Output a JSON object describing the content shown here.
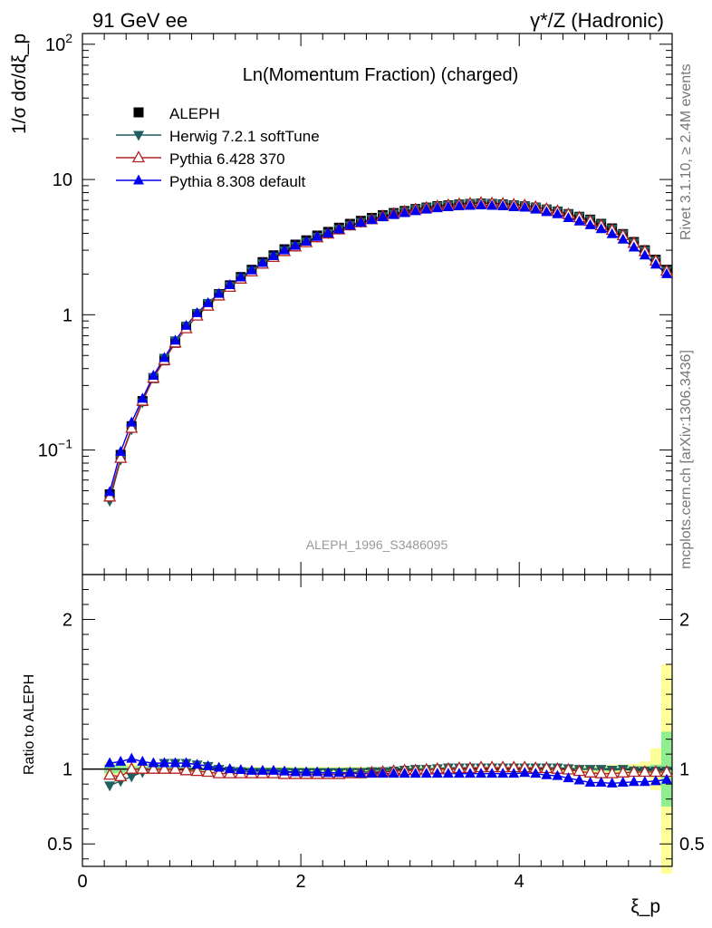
{
  "header": {
    "left": "91 GeV ee",
    "right": "γ*/Z (Hadronic)"
  },
  "side_labels": {
    "rivet": "Rivet 3.1.10, ≥ 2.4M events",
    "mcplots": "mcplots.cern.ch [arXiv:1306.3436]"
  },
  "chart_data": [
    {
      "type": "line",
      "title": "Ln(Momentum Fraction) (charged)",
      "watermark": "ALEPH_1996_S3486095",
      "ylabel": "1/σ dσ/dξ_p",
      "xlabel": "ξ_p",
      "yscale": "log",
      "xlim": [
        0,
        5.4
      ],
      "ylim": [
        0.012,
        120
      ],
      "yticks": [
        {
          "value": 0.1,
          "label": "10^-1"
        },
        {
          "value": 1,
          "label": "1"
        },
        {
          "value": 10,
          "label": "10"
        },
        {
          "value": 100,
          "label": "10^2"
        }
      ],
      "legend_position": "top-left",
      "x": [
        0.25,
        0.35,
        0.45,
        0.55,
        0.65,
        0.75,
        0.85,
        0.95,
        1.05,
        1.15,
        1.25,
        1.35,
        1.45,
        1.55,
        1.65,
        1.75,
        1.85,
        1.95,
        2.05,
        2.15,
        2.25,
        2.35,
        2.45,
        2.55,
        2.65,
        2.75,
        2.85,
        2.95,
        3.05,
        3.15,
        3.25,
        3.35,
        3.45,
        3.55,
        3.65,
        3.75,
        3.85,
        3.95,
        4.05,
        4.15,
        4.25,
        4.35,
        4.45,
        4.55,
        4.65,
        4.75,
        4.85,
        4.95,
        5.05,
        5.15,
        5.25,
        5.35
      ],
      "series": [
        {
          "name": "ALEPH",
          "color": "#000000",
          "marker": "square",
          "values": [
            0.047,
            0.092,
            0.15,
            0.23,
            0.34,
            0.46,
            0.62,
            0.8,
            1.0,
            1.2,
            1.42,
            1.65,
            1.9,
            2.15,
            2.45,
            2.75,
            3.05,
            3.3,
            3.55,
            3.85,
            4.1,
            4.4,
            4.7,
            4.95,
            5.2,
            5.45,
            5.65,
            5.85,
            6.05,
            6.2,
            6.35,
            6.45,
            6.55,
            6.6,
            6.65,
            6.6,
            6.55,
            6.45,
            6.35,
            6.2,
            6.0,
            5.8,
            5.55,
            5.3,
            5.05,
            4.7,
            4.35,
            3.95,
            3.45,
            3.0,
            2.55,
            2.15
          ]
        },
        {
          "name": "Herwig 7.2.1 softTune",
          "color": "#1f5f5f",
          "marker": "triangle-down",
          "values": [
            0.042,
            0.085,
            0.142,
            0.225,
            0.345,
            0.48,
            0.645,
            0.83,
            1.03,
            1.22,
            1.42,
            1.63,
            1.87,
            2.11,
            2.4,
            2.69,
            2.98,
            3.22,
            3.46,
            3.76,
            4.0,
            4.3,
            4.6,
            4.85,
            5.12,
            5.38,
            5.6,
            5.82,
            6.05,
            6.22,
            6.38,
            6.5,
            6.62,
            6.68,
            6.72,
            6.66,
            6.6,
            6.52,
            6.42,
            6.25,
            6.05,
            5.85,
            5.58,
            5.32,
            5.05,
            4.7,
            4.33,
            3.95,
            3.42,
            2.98,
            2.52,
            2.12
          ]
        },
        {
          "name": "Pythia 6.428 370",
          "color": "#b22222",
          "marker": "triangle-open",
          "values": [
            0.045,
            0.087,
            0.145,
            0.23,
            0.34,
            0.46,
            0.62,
            0.79,
            0.98,
            1.16,
            1.38,
            1.6,
            1.84,
            2.08,
            2.37,
            2.66,
            2.94,
            3.18,
            3.42,
            3.72,
            3.96,
            4.25,
            4.55,
            4.8,
            5.06,
            5.33,
            5.56,
            5.78,
            6.0,
            6.16,
            6.32,
            6.44,
            6.56,
            6.62,
            6.7,
            6.64,
            6.6,
            6.5,
            6.42,
            6.24,
            6.04,
            5.82,
            5.52,
            5.22,
            4.92,
            4.56,
            4.22,
            3.85,
            3.38,
            2.94,
            2.5,
            2.1
          ]
        },
        {
          "name": "Pythia 8.308 default",
          "color": "#0000ee",
          "marker": "triangle-up",
          "values": [
            0.049,
            0.097,
            0.16,
            0.24,
            0.355,
            0.48,
            0.645,
            0.83,
            1.03,
            1.22,
            1.43,
            1.66,
            1.89,
            2.13,
            2.42,
            2.72,
            3.0,
            3.24,
            3.48,
            3.77,
            4.0,
            4.28,
            4.57,
            4.8,
            5.03,
            5.27,
            5.47,
            5.66,
            5.85,
            6.0,
            6.15,
            6.25,
            6.35,
            6.4,
            6.45,
            6.4,
            6.35,
            6.25,
            6.2,
            6.0,
            5.75,
            5.55,
            5.2,
            4.9,
            4.6,
            4.3,
            3.95,
            3.6,
            3.15,
            2.75,
            2.35,
            2.0
          ]
        }
      ]
    },
    {
      "type": "line",
      "ylabel": "Ratio to ALEPH",
      "xlabel": "ξ_p",
      "xlim": [
        0,
        5.4
      ],
      "ylim": [
        0.35,
        2.3
      ],
      "yticks": [
        0.5,
        1,
        2
      ],
      "xticks": [
        0,
        2,
        4
      ],
      "series": [
        {
          "name": "Herwig 7.2.1 softTune",
          "values": [
            0.89,
            0.92,
            0.95,
            0.98,
            1.01,
            1.04,
            1.04,
            1.04,
            1.03,
            1.02,
            1.0,
            0.99,
            0.985,
            0.98,
            0.98,
            0.98,
            0.98,
            0.975,
            0.975,
            0.975,
            0.975,
            0.975,
            0.98,
            0.98,
            0.985,
            0.985,
            0.99,
            0.995,
            1.0,
            1.0,
            1.005,
            1.01,
            1.01,
            1.01,
            1.01,
            1.01,
            1.01,
            1.01,
            1.01,
            1.01,
            1.01,
            1.01,
            1.005,
            1.0,
            1.0,
            1.0,
            0.995,
            1.0,
            0.99,
            0.99,
            0.99,
            0.99
          ]
        },
        {
          "name": "Pythia 6.428 370",
          "values": [
            0.96,
            0.95,
            1.0,
            1.0,
            1.0,
            1.0,
            1.0,
            0.99,
            0.985,
            0.98,
            0.97,
            0.97,
            0.97,
            0.97,
            0.97,
            0.97,
            0.965,
            0.965,
            0.965,
            0.965,
            0.965,
            0.965,
            0.97,
            0.97,
            0.975,
            0.98,
            0.985,
            0.99,
            0.99,
            0.995,
            1.0,
            1.0,
            1.005,
            1.005,
            1.01,
            1.01,
            1.01,
            1.01,
            1.01,
            1.005,
            1.005,
            1.0,
            0.995,
            0.985,
            0.975,
            0.97,
            0.97,
            0.975,
            0.98,
            0.98,
            0.98,
            0.98
          ]
        },
        {
          "name": "Pythia 8.308 default",
          "values": [
            1.04,
            1.05,
            1.07,
            1.05,
            1.04,
            1.04,
            1.04,
            1.04,
            1.03,
            1.02,
            1.01,
            1.0,
            0.995,
            0.99,
            0.99,
            0.99,
            0.985,
            0.98,
            0.98,
            0.98,
            0.975,
            0.975,
            0.975,
            0.97,
            0.97,
            0.97,
            0.97,
            0.97,
            0.97,
            0.97,
            0.97,
            0.97,
            0.97,
            0.97,
            0.97,
            0.97,
            0.97,
            0.97,
            0.975,
            0.97,
            0.96,
            0.955,
            0.94,
            0.925,
            0.91,
            0.91,
            0.905,
            0.91,
            0.915,
            0.915,
            0.92,
            0.93
          ]
        }
      ],
      "uncertainty_band": {
        "inner_color": "#90ee90",
        "outer_color": "#ffff99",
        "inner_halfwidth": [
          0.03,
          0.025,
          0.02,
          0.02,
          0.015,
          0.015,
          0.015,
          0.015,
          0.01,
          0.01,
          0.01,
          0.01,
          0.01,
          0.01,
          0.01,
          0.01,
          0.01,
          0.01,
          0.01,
          0.01,
          0.01,
          0.01,
          0.01,
          0.01,
          0.01,
          0.01,
          0.01,
          0.01,
          0.01,
          0.01,
          0.01,
          0.01,
          0.01,
          0.01,
          0.01,
          0.01,
          0.01,
          0.01,
          0.01,
          0.01,
          0.01,
          0.01,
          0.01,
          0.01,
          0.01,
          0.015,
          0.015,
          0.015,
          0.02,
          0.02,
          0.03,
          0.25
        ],
        "outer_halfwidth": [
          0.05,
          0.04,
          0.035,
          0.035,
          0.03,
          0.03,
          0.025,
          0.025,
          0.02,
          0.02,
          0.02,
          0.015,
          0.015,
          0.015,
          0.015,
          0.015,
          0.015,
          0.015,
          0.015,
          0.015,
          0.015,
          0.015,
          0.015,
          0.015,
          0.015,
          0.015,
          0.015,
          0.015,
          0.015,
          0.015,
          0.015,
          0.015,
          0.015,
          0.015,
          0.015,
          0.015,
          0.015,
          0.015,
          0.015,
          0.015,
          0.015,
          0.015,
          0.02,
          0.02,
          0.025,
          0.025,
          0.03,
          0.03,
          0.035,
          0.05,
          0.14,
          0.7
        ]
      }
    }
  ]
}
